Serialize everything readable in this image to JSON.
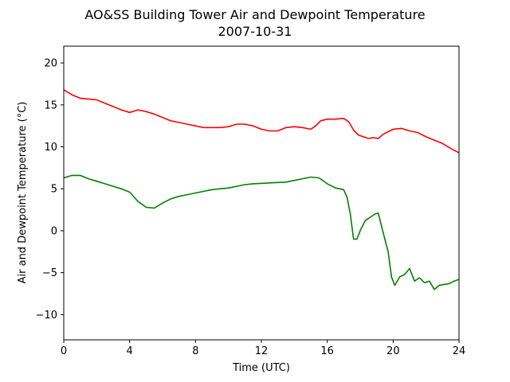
{
  "chart_data": {
    "type": "line",
    "title": "AO&SS Building Tower Air and Dewpoint Temperature",
    "subtitle": "2007-10-31",
    "xlabel": "Time (UTC)",
    "ylabel": "Air and Dewpoint Temperature (°C)",
    "xlim": [
      0,
      24
    ],
    "ylim": [
      -13,
      22
    ],
    "xticks": [
      0,
      4,
      8,
      12,
      16,
      20,
      24
    ],
    "yticks": [
      -10,
      -5,
      0,
      5,
      10,
      15,
      20
    ],
    "grid": false,
    "series": [
      {
        "color": "#ff0000",
        "x": [
          0,
          0.5,
          1,
          1.5,
          2,
          2.5,
          3,
          3.5,
          4,
          4.5,
          5,
          5.5,
          6,
          6.5,
          7,
          7.5,
          8,
          8.5,
          9,
          9.5,
          10,
          10.5,
          11,
          11.5,
          12,
          12.5,
          13,
          13.5,
          14,
          14.5,
          15,
          15.3,
          15.6,
          16,
          16.5,
          17,
          17.3,
          17.6,
          17.9,
          18.2,
          18.5,
          18.8,
          19.1,
          19.4,
          19.7,
          20,
          20.5,
          21,
          21.5,
          22,
          22.5,
          23,
          23.5,
          24
        ],
        "y": [
          16.8,
          16.2,
          15.8,
          15.7,
          15.6,
          15.2,
          14.8,
          14.4,
          14.1,
          14.4,
          14.2,
          13.9,
          13.5,
          13.1,
          12.9,
          12.7,
          12.5,
          12.3,
          12.3,
          12.3,
          12.4,
          12.7,
          12.7,
          12.5,
          12.1,
          11.9,
          11.9,
          12.3,
          12.4,
          12.3,
          12.1,
          12.5,
          13.1,
          13.3,
          13.3,
          13.4,
          13.0,
          12.0,
          11.4,
          11.2,
          11.0,
          11.1,
          11.0,
          11.5,
          11.8,
          12.1,
          12.2,
          11.9,
          11.7,
          11.2,
          10.8,
          10.4,
          9.8,
          9.3
        ]
      },
      {
        "color": "#008000",
        "x": [
          0,
          0.5,
          1,
          1.5,
          2,
          2.5,
          3,
          3.5,
          4,
          4.5,
          5,
          5.5,
          6,
          6.5,
          7,
          7.5,
          8,
          8.5,
          9,
          9.5,
          10,
          10.5,
          11,
          11.5,
          12,
          12.5,
          13,
          13.5,
          14,
          14.5,
          15,
          15.5,
          16,
          16.5,
          17,
          17.2,
          17.4,
          17.6,
          17.8,
          18.0,
          18.3,
          18.6,
          18.9,
          19.1,
          19.3,
          19.5,
          19.7,
          19.9,
          20.1,
          20.4,
          20.7,
          21.0,
          21.3,
          21.6,
          21.9,
          22.2,
          22.5,
          22.8,
          23.1,
          23.4,
          23.7,
          24
        ],
        "y": [
          6.3,
          6.6,
          6.6,
          6.2,
          5.9,
          5.6,
          5.3,
          5.0,
          4.6,
          3.5,
          2.8,
          2.7,
          3.3,
          3.8,
          4.1,
          4.3,
          4.5,
          4.7,
          4.9,
          5.0,
          5.1,
          5.3,
          5.5,
          5.6,
          5.65,
          5.7,
          5.75,
          5.8,
          6.0,
          6.2,
          6.4,
          6.3,
          5.6,
          5.1,
          4.9,
          4.0,
          2.0,
          -1.0,
          -1.0,
          0.0,
          1.2,
          1.6,
          2.0,
          2.1,
          0.5,
          -1.0,
          -2.5,
          -5.5,
          -6.5,
          -5.5,
          -5.2,
          -4.5,
          -6.0,
          -5.6,
          -6.2,
          -6.0,
          -7.0,
          -6.5,
          -6.4,
          -6.3,
          -6.0,
          -5.8
        ]
      }
    ]
  }
}
